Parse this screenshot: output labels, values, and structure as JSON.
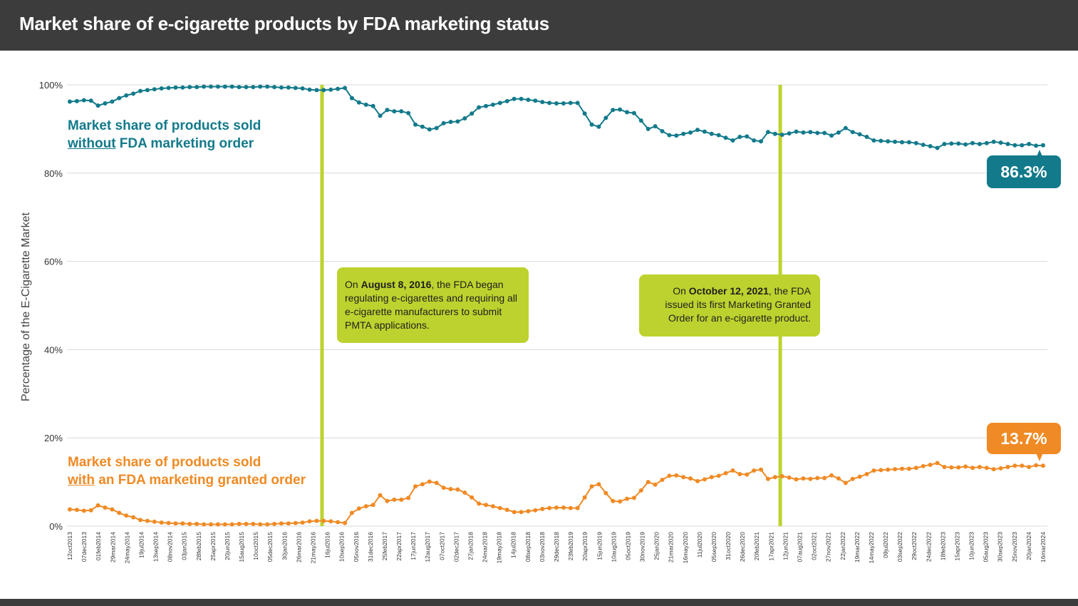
{
  "header": {
    "title": "Market share of e-cigarette products by FDA marketing status"
  },
  "colors": {
    "without": "#127a8b",
    "with": "#f08a24",
    "event": "#bdd22e",
    "grid": "#d9d9d9",
    "header_bg": "#3d3c3c"
  },
  "labels": {
    "without_line1": "Market share of products sold",
    "without_underlined": "without",
    "without_rest": " FDA marketing order",
    "with_line1": "Market share of products sold",
    "with_underlined": "with",
    "with_rest": " an FDA marketing granted order"
  },
  "callouts": {
    "first": {
      "pre": "On ",
      "bold": "August  8, 2016",
      "post": ", the FDA began regulating e-cigarettes and requiring all e-cigarette manufacturers to submit PMTA applications."
    },
    "second": {
      "pre": "On ",
      "bold": "October 12, 2021",
      "post": ", the FDA issued its first Marketing Granted Order for an e-cigarette product."
    }
  },
  "badges": {
    "without": "86.3%",
    "with": "13.7%"
  },
  "chart_data": {
    "type": "line",
    "title": "Market share of e-cigarette products by FDA marketing status",
    "ylabel": "Percentage of the E-Cigarette Market",
    "xlabel": "",
    "ylim": [
      0,
      100
    ],
    "yticks": [
      "0%",
      "20%",
      "40%",
      "60%",
      "80%",
      "100%"
    ],
    "grid": "horizontal",
    "event_lines": [
      {
        "index": 71,
        "label": "August 8, 2016"
      }
    ],
    "event_lines_second_index": 200,
    "x_tick_labels": [
      "12oct2013",
      "07dec2013",
      "01feb2014",
      "29mar2014",
      "24may2014",
      "19jul2014",
      "13sep2014",
      "08nov2014",
      "03jan2015",
      "28feb2015",
      "25apr2015",
      "20jun2015",
      "15aug2015",
      "10oct2015",
      "05dec2015",
      "30jan2016",
      "26mar2016",
      "21may2016",
      "16jul2016",
      "10sep2016",
      "05nov2016",
      "31dec2016",
      "25feb2017",
      "22apr2017",
      "17jun2017",
      "12aug2017",
      "07oct2017",
      "02dec2017",
      "27jan2018",
      "24mar2018",
      "19may2018",
      "14jul2018",
      "08sep2018",
      "03nov2018",
      "29dec2018",
      "23feb2019",
      "20apr2019",
      "15jun2019",
      "10aug2019",
      "05oct2019",
      "30nov2019",
      "25jan2020",
      "21mar2020",
      "16may2020",
      "11jul2020",
      "05sep2020",
      "31oct2020",
      "26dec2020",
      "20feb2021",
      "17apr2021",
      "12jun2021",
      "07aug2021",
      "02oct2021",
      "27nov2021",
      "22jan2022",
      "19mar2022",
      "14may2022",
      "09jul2022",
      "03sep2022",
      "29oct2022",
      "24dec2022",
      "18feb2023",
      "15apr2023",
      "10jun2023",
      "05aug2023",
      "30sep2023",
      "25nov2023",
      "20jan2024",
      "16mar2024"
    ],
    "series": [
      {
        "name": "Market share of products sold without FDA marketing order",
        "values": [
          96.2,
          96.3,
          96.5,
          96.4,
          95.3,
          95.8,
          96.2,
          97.0,
          97.6,
          98.0,
          98.6,
          98.8,
          99.0,
          99.2,
          99.3,
          99.4,
          99.4,
          99.5,
          99.5,
          99.6,
          99.6,
          99.6,
          99.6,
          99.6,
          99.5,
          99.5,
          99.5,
          99.6,
          99.6,
          99.5,
          99.4,
          99.4,
          99.3,
          99.2,
          98.9,
          98.8,
          98.8,
          98.9,
          99.1,
          99.3,
          97.0,
          96.0,
          95.5,
          95.2,
          93.0,
          94.3,
          94.0,
          94.0,
          93.6,
          91.0,
          90.5,
          89.9,
          90.2,
          91.3,
          91.6,
          91.7,
          92.4,
          93.5,
          94.9,
          95.2,
          95.5,
          95.9,
          96.3,
          96.8,
          96.8,
          96.6,
          96.4,
          96.1,
          95.9,
          95.8,
          95.8,
          95.9,
          95.9,
          93.5,
          91.0,
          90.5,
          92.5,
          94.3,
          94.4,
          93.8,
          93.6,
          91.9,
          90.0,
          90.6,
          89.5,
          88.6,
          88.5,
          88.9,
          89.2,
          89.8,
          89.4,
          88.9,
          88.6,
          88.0,
          87.4,
          88.2,
          88.3,
          87.4,
          87.2,
          89.3,
          88.9,
          88.7,
          89.0,
          89.4,
          89.2,
          89.3,
          89.1,
          89.1,
          88.5,
          89.2,
          90.2,
          89.3,
          88.8,
          88.2,
          87.4,
          87.3,
          87.2,
          87.1,
          87.0,
          87.0,
          86.8,
          86.4,
          86.1,
          85.7,
          86.6,
          86.7,
          86.7,
          86.5,
          86.8,
          86.6,
          86.8,
          87.1,
          86.9,
          86.6,
          86.3,
          86.3,
          86.6,
          86.2,
          86.3
        ]
      },
      {
        "name": "Market share of products sold with an FDA marketing granted order",
        "values": [
          3.8,
          3.7,
          3.5,
          3.6,
          4.7,
          4.2,
          3.8,
          3.0,
          2.4,
          2.0,
          1.4,
          1.2,
          1.0,
          0.8,
          0.7,
          0.6,
          0.6,
          0.5,
          0.5,
          0.4,
          0.4,
          0.4,
          0.4,
          0.4,
          0.5,
          0.5,
          0.5,
          0.4,
          0.4,
          0.5,
          0.6,
          0.6,
          0.7,
          0.8,
          1.1,
          1.2,
          1.2,
          1.1,
          0.9,
          0.7,
          3.0,
          4.0,
          4.5,
          4.8,
          7.0,
          5.7,
          6.0,
          6.0,
          6.4,
          9.0,
          9.5,
          10.1,
          9.8,
          8.7,
          8.4,
          8.3,
          7.6,
          6.5,
          5.1,
          4.8,
          4.5,
          4.1,
          3.7,
          3.2,
          3.2,
          3.4,
          3.6,
          3.9,
          4.1,
          4.2,
          4.2,
          4.1,
          4.1,
          6.5,
          9.0,
          9.5,
          7.5,
          5.7,
          5.6,
          6.2,
          6.4,
          8.1,
          10.0,
          9.4,
          10.5,
          11.4,
          11.5,
          11.1,
          10.8,
          10.2,
          10.6,
          11.1,
          11.4,
          12.0,
          12.6,
          11.8,
          11.7,
          12.6,
          12.8,
          10.7,
          11.1,
          11.3,
          11.0,
          10.6,
          10.8,
          10.7,
          10.9,
          10.9,
          11.5,
          10.8,
          9.8,
          10.7,
          11.2,
          11.8,
          12.6,
          12.7,
          12.8,
          12.9,
          13.0,
          13.0,
          13.2,
          13.6,
          13.9,
          14.3,
          13.4,
          13.3,
          13.3,
          13.5,
          13.2,
          13.4,
          13.2,
          12.9,
          13.1,
          13.4,
          13.7,
          13.7,
          13.4,
          13.8,
          13.7
        ]
      }
    ]
  }
}
